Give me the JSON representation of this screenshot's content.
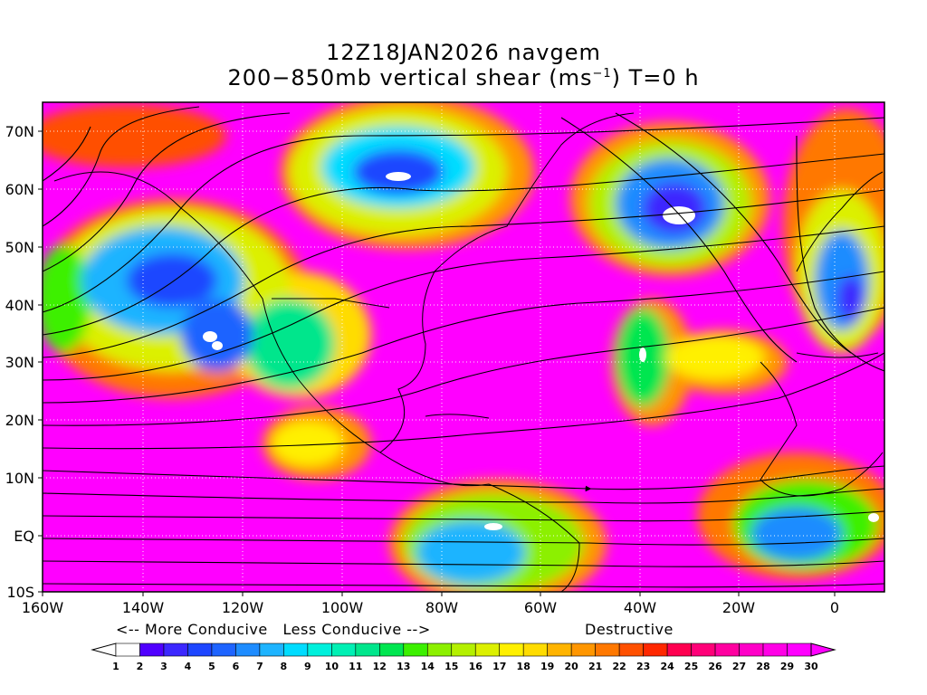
{
  "title_line1": "12Z18JAN2026 navgem",
  "title_line2_prefix": "200−850mb vertical shear (ms",
  "title_line2_sup": "−1",
  "title_line2_suffix": ") T=0 h",
  "lat_labels": [
    "70N",
    "60N",
    "50N",
    "40N",
    "30N",
    "20N",
    "10N",
    "EQ",
    "10S"
  ],
  "lon_labels": [
    "160W",
    "140W",
    "120W",
    "100W",
    "80W",
    "60W",
    "40W",
    "20W",
    "0"
  ],
  "caption_conducive": "<-- More Conducive   Less Conducive -->",
  "caption_destructive": "Destructive",
  "colorbar_labels": [
    "1",
    "2",
    "3",
    "4",
    "5",
    "6",
    "7",
    "8",
    "9",
    "10",
    "11",
    "12",
    "13",
    "14",
    "15",
    "16",
    "17",
    "18",
    "19",
    "20",
    "21",
    "22",
    "23",
    "24",
    "25",
    "26",
    "27",
    "28",
    "29",
    "30"
  ],
  "colors": {
    "magenta": "#ff00ff",
    "background": "#ffffff",
    "scale": [
      "#ffffff",
      "#5000ff",
      "#3c28ff",
      "#1e46ff",
      "#1e64ff",
      "#1e8cff",
      "#1eb4ff",
      "#00dcff",
      "#00f0dc",
      "#00f0b4",
      "#00e68c",
      "#00e650",
      "#3cf000",
      "#8cf000",
      "#b4f000",
      "#dcf000",
      "#fff000",
      "#ffdc00",
      "#ffb400",
      "#ff9600",
      "#ff7800",
      "#ff5000",
      "#ff2800",
      "#ff0050",
      "#ff0078",
      "#ff00a0",
      "#ff00c8",
      "#ff00e6",
      "#ff00ff"
    ]
  }
}
